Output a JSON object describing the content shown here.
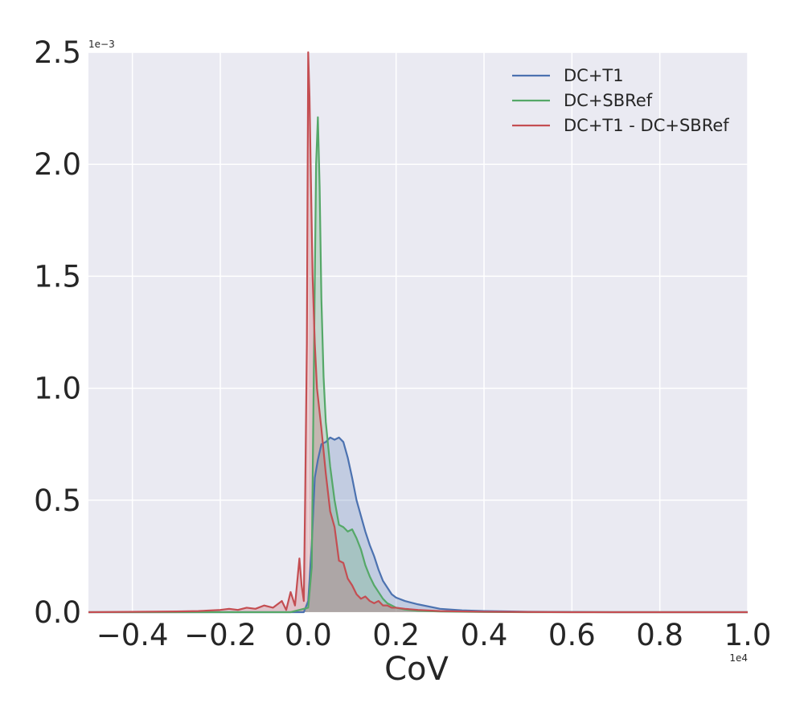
{
  "chart_data": {
    "type": "area",
    "xlabel": "CoV",
    "ylabel": "",
    "x_multiplier_label": "1e4",
    "y_multiplier_label": "1e−3",
    "x_scale": 10000,
    "y_scale": 0.001,
    "xlim": [
      -0.5,
      1.0
    ],
    "ylim": [
      0,
      2.5
    ],
    "x_ticks": [
      -0.4,
      -0.2,
      0.0,
      0.2,
      0.4,
      0.6,
      0.8,
      1.0
    ],
    "x_tick_labels": [
      "−0.4",
      "−0.2",
      "0.0",
      "0.2",
      "0.4",
      "0.6",
      "0.8",
      "1.0"
    ],
    "y_ticks": [
      0.0,
      0.5,
      1.0,
      1.5,
      2.0,
      2.5
    ],
    "y_tick_labels": [
      "0.0",
      "0.5",
      "1.0",
      "1.5",
      "2.0",
      "2.5"
    ],
    "grid": true,
    "legend_position": "top-right",
    "series": [
      {
        "name": "DC+T1",
        "color": "#4c72b0",
        "x": [
          -0.5,
          -0.01,
          0.0,
          0.008,
          0.015,
          0.022,
          0.03,
          0.04,
          0.05,
          0.06,
          0.07,
          0.08,
          0.09,
          0.1,
          0.11,
          0.12,
          0.13,
          0.14,
          0.15,
          0.16,
          0.17,
          0.18,
          0.19,
          0.2,
          0.22,
          0.25,
          0.3,
          0.35,
          0.4,
          0.5,
          0.6,
          0.7,
          1.0
        ],
        "y": [
          0.0,
          0.0,
          0.05,
          0.3,
          0.6,
          0.68,
          0.75,
          0.76,
          0.78,
          0.77,
          0.78,
          0.76,
          0.69,
          0.6,
          0.5,
          0.43,
          0.36,
          0.3,
          0.25,
          0.19,
          0.14,
          0.11,
          0.08,
          0.065,
          0.05,
          0.035,
          0.015,
          0.008,
          0.005,
          0.002,
          0.001,
          0.0,
          0.0
        ]
      },
      {
        "name": "DC+SBRef",
        "color": "#55a868",
        "x": [
          -0.5,
          -0.04,
          0.0,
          0.008,
          0.014,
          0.018,
          0.022,
          0.026,
          0.03,
          0.035,
          0.04,
          0.05,
          0.06,
          0.07,
          0.08,
          0.09,
          0.1,
          0.11,
          0.12,
          0.13,
          0.14,
          0.15,
          0.16,
          0.17,
          0.18,
          0.19,
          0.2,
          0.22,
          0.25,
          0.3,
          0.4,
          0.5,
          0.7,
          1.0
        ],
        "y": [
          0.0,
          0.0,
          0.02,
          0.2,
          1.3,
          2.0,
          2.21,
          1.9,
          1.4,
          1.05,
          0.85,
          0.65,
          0.5,
          0.39,
          0.38,
          0.36,
          0.37,
          0.33,
          0.28,
          0.21,
          0.16,
          0.12,
          0.09,
          0.06,
          0.04,
          0.03,
          0.02,
          0.012,
          0.006,
          0.003,
          0.001,
          0.0,
          0.0,
          0.0
        ]
      },
      {
        "name": "DC+T1 - DC+SBRef",
        "color": "#c44e52",
        "x": [
          -0.5,
          -0.3,
          -0.25,
          -0.2,
          -0.18,
          -0.16,
          -0.14,
          -0.12,
          -0.1,
          -0.08,
          -0.06,
          -0.05,
          -0.04,
          -0.03,
          -0.02,
          -0.015,
          -0.01,
          -0.007,
          -0.003,
          0.0,
          0.003,
          0.006,
          0.01,
          0.015,
          0.02,
          0.03,
          0.04,
          0.05,
          0.06,
          0.07,
          0.08,
          0.09,
          0.1,
          0.11,
          0.12,
          0.13,
          0.14,
          0.15,
          0.16,
          0.17,
          0.18,
          0.19,
          0.2,
          0.22,
          0.25,
          0.3,
          0.4,
          0.5,
          0.6,
          1.0
        ],
        "y": [
          0.0,
          0.003,
          0.005,
          0.01,
          0.015,
          0.01,
          0.02,
          0.015,
          0.03,
          0.02,
          0.05,
          0.01,
          0.09,
          0.03,
          0.24,
          0.12,
          0.05,
          0.5,
          1.2,
          2.5,
          2.3,
          1.95,
          1.5,
          1.2,
          1.0,
          0.82,
          0.62,
          0.45,
          0.38,
          0.23,
          0.22,
          0.15,
          0.12,
          0.08,
          0.06,
          0.07,
          0.05,
          0.04,
          0.05,
          0.03,
          0.03,
          0.02,
          0.02,
          0.015,
          0.01,
          0.005,
          0.002,
          0.001,
          0.0,
          0.0
        ]
      }
    ]
  }
}
